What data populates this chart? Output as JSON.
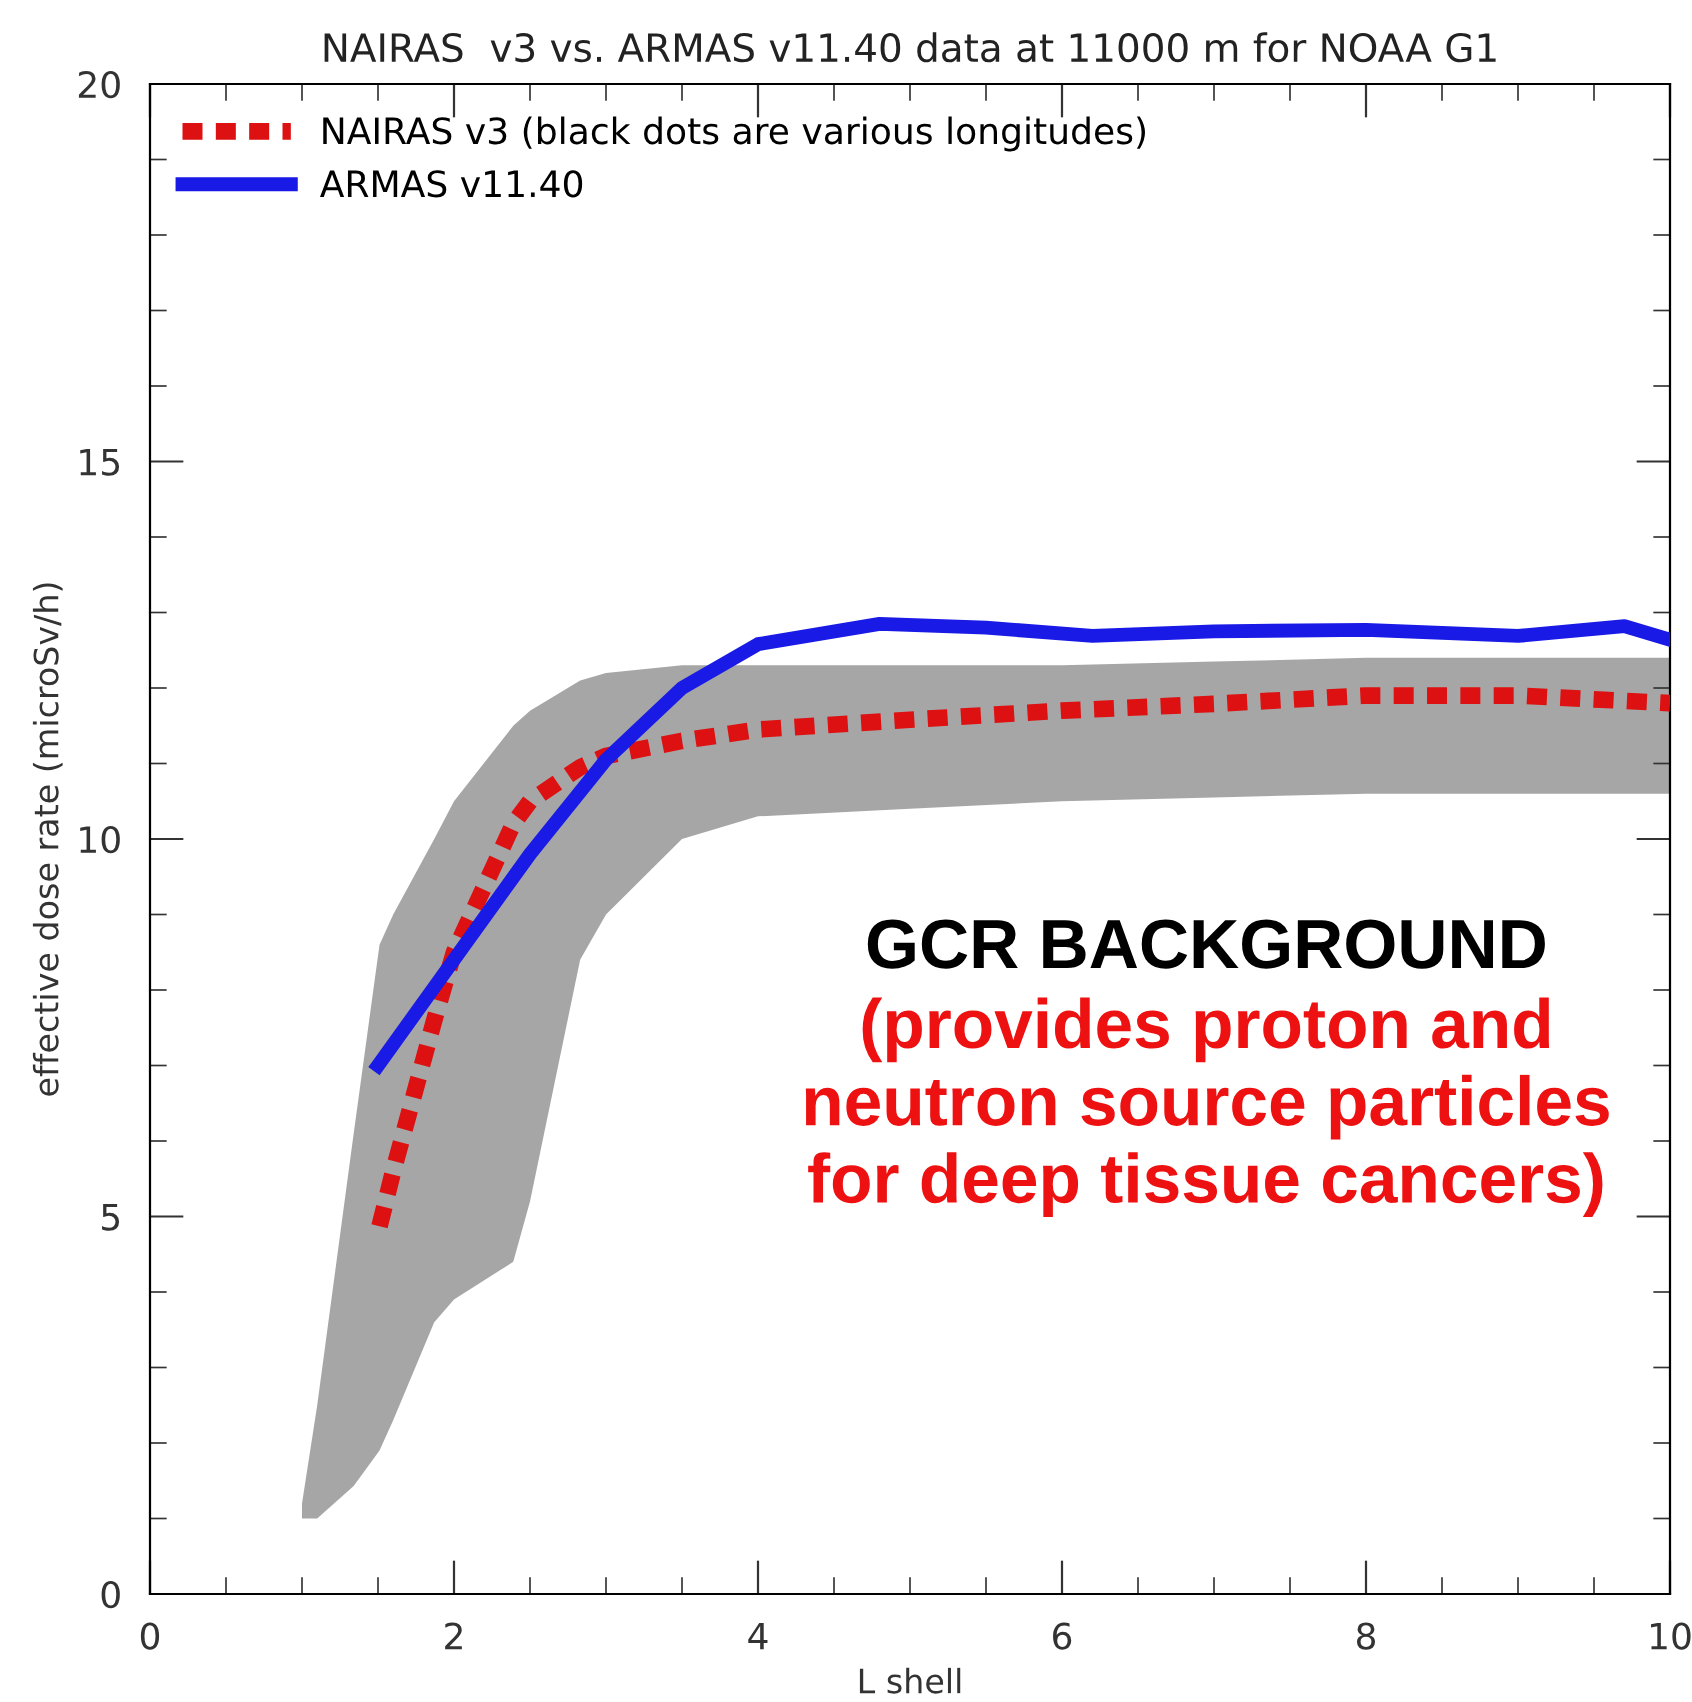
{
  "chart_data": {
    "type": "line",
    "title": "NAIRAS  v3 vs. ARMAS v11.40 data at 11000 m for NOAA G1",
    "xlabel": "L shell",
    "ylabel": "effective dose rate (microSv/h)",
    "xlim": [
      0,
      10
    ],
    "ylim": [
      0,
      20
    ],
    "xticks": [
      0,
      2,
      4,
      6,
      8,
      10
    ],
    "yticks": [
      0,
      5,
      10,
      15,
      20
    ],
    "grid": false,
    "legend": "top left",
    "marker": "none",
    "series": [
      {
        "name": "NAIRAS v3 (black dots are various longitudes)",
        "color": "#dd1111",
        "line_style": "dashed",
        "x": [
          1,
          1.1,
          1.34,
          1.51,
          1.6,
          1.87,
          2,
          2.39,
          2.5,
          2.83,
          3,
          3.5,
          4,
          5,
          6,
          7,
          8,
          9,
          10
        ],
        "values": [
          null,
          null,
          null,
          4.87,
          5.6,
          7.6,
          8.5,
          10.2,
          10.5,
          10.95,
          11.1,
          11.3,
          11.45,
          11.58,
          11.7,
          11.79,
          11.9,
          11.9,
          11.8
        ],
        "lower": [
          1.0,
          1.0,
          1.43,
          1.9,
          2.3,
          3.6,
          3.9,
          4.4,
          5.2,
          8.4,
          9.0,
          10.0,
          10.3,
          10.4,
          10.5,
          10.55,
          10.6,
          10.6,
          10.6
        ],
        "upper": [
          1.2,
          2.5,
          6.1,
          8.6,
          9.0,
          10.0,
          10.5,
          11.5,
          11.7,
          12.1,
          12.2,
          12.3,
          12.3,
          12.3,
          12.3,
          12.35,
          12.4,
          12.4,
          12.4
        ]
      },
      {
        "name": "ARMAS v11.40",
        "color": "#1a1ae6",
        "line_style": "solid",
        "x": [
          1.5,
          2,
          2.5,
          3,
          3.5,
          4,
          4.8,
          5.5,
          6.2,
          7,
          8,
          9,
          9.7,
          10
        ],
        "values": [
          7.0,
          8.4,
          9.8,
          11.05,
          12.0,
          12.58,
          12.85,
          12.8,
          12.69,
          12.75,
          12.77,
          12.69,
          12.82,
          12.64
        ]
      }
    ],
    "annotations": [
      "GCR BACKGROUND",
      "(provides proton and neutron source particles for deep tissue cancers)"
    ]
  }
}
